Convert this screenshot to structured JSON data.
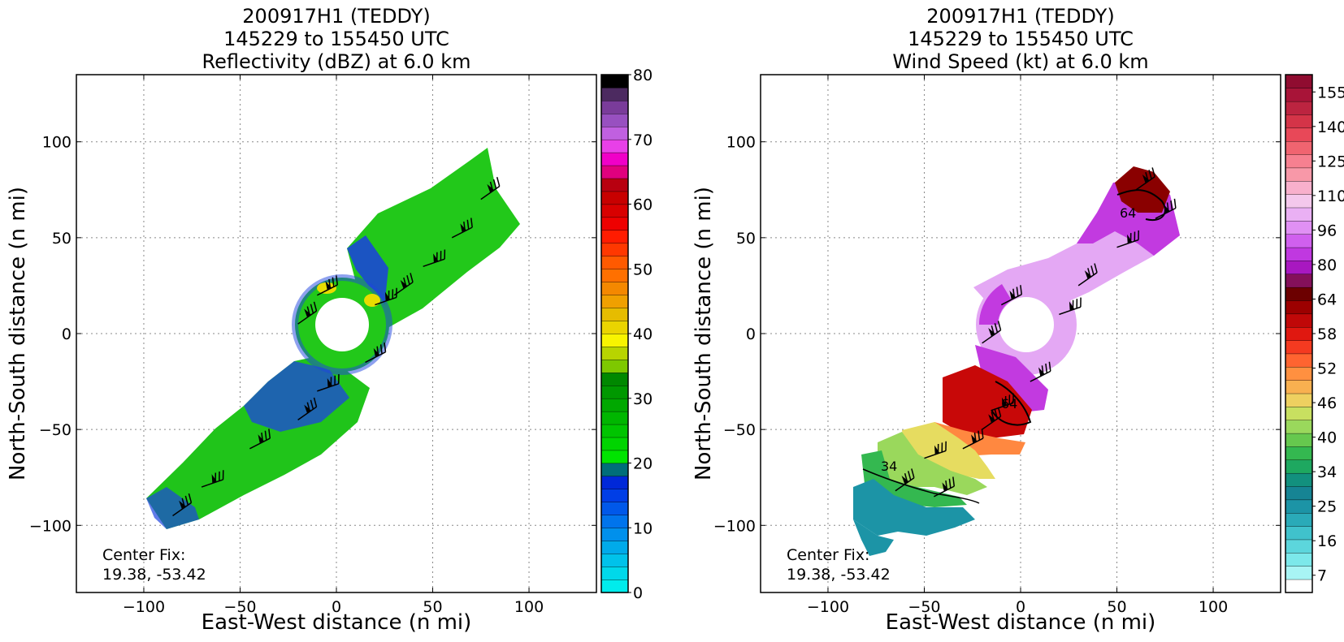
{
  "chart_data": [
    {
      "type": "heatmap",
      "title": [
        "200917H1 (TEDDY)",
        "145229 to 155450 UTC",
        "Reflectivity (dBZ) at 6.0 km"
      ],
      "xlabel": "East-West distance (n mi)",
      "ylabel": "North-South distance (n mi)",
      "xlim": [
        -135,
        135
      ],
      "ylim": [
        -135,
        135
      ],
      "xticks": [
        -100,
        -50,
        0,
        50,
        100
      ],
      "yticks": [
        -100,
        -50,
        0,
        50,
        100
      ],
      "grid": true,
      "annotation": [
        "Center Fix:",
        "19.38, -53.42"
      ],
      "colorbar": {
        "min": 0,
        "max": 80,
        "ticks": [
          0,
          10,
          20,
          30,
          40,
          50,
          60,
          70,
          80
        ],
        "colors": [
          "#00ecec",
          "#00d8ea",
          "#00c2ea",
          "#00aaea",
          "#0090ec",
          "#0074ec",
          "#0058ea",
          "#003ee6",
          "#0028d8",
          "#006e7a",
          "#00e400",
          "#00d400",
          "#00c400",
          "#00b600",
          "#00a800",
          "#009800",
          "#008800",
          "#7ec800",
          "#b8d400",
          "#f8f400",
          "#ead400",
          "#e6bc00",
          "#f0a000",
          "#f48800",
          "#ff7000",
          "#ff5a00",
          "#ff3800",
          "#ff1c00",
          "#ee0000",
          "#d80000",
          "#c80000",
          "#b80010",
          "#e0007e",
          "#f000c8",
          "#e840e8",
          "#c060e0",
          "#9850c0",
          "#7a3c9a",
          "#4c2a60",
          "#000000"
        ]
      },
      "field_series": [
        {
          "x": 75,
          "y": 70,
          "value": 22
        },
        {
          "x": 60,
          "y": 50,
          "value": 24
        },
        {
          "x": 45,
          "y": 35,
          "value": 22
        },
        {
          "x": 30,
          "y": 20,
          "value": 24
        },
        {
          "x": -10,
          "y": 20,
          "value": 34
        },
        {
          "x": 20,
          "y": 15,
          "value": 36
        },
        {
          "x": -20,
          "y": 5,
          "value": 28
        },
        {
          "x": 15,
          "y": -15,
          "value": 14
        },
        {
          "x": -10,
          "y": -30,
          "value": 20
        },
        {
          "x": -20,
          "y": -45,
          "value": 12
        },
        {
          "x": -45,
          "y": -60,
          "value": 22
        },
        {
          "x": -70,
          "y": -80,
          "value": 20
        },
        {
          "x": -85,
          "y": -95,
          "value": 12
        }
      ]
    },
    {
      "type": "heatmap",
      "title": [
        "200917H1 (TEDDY)",
        "145229 to 155450 UTC",
        "Wind Speed (kt) at 6.0 km"
      ],
      "xlabel": "East-West distance (n mi)",
      "ylabel": "North-South distance (n mi)",
      "xlim": [
        -135,
        135
      ],
      "ylim": [
        -135,
        135
      ],
      "xticks": [
        -100,
        -50,
        0,
        50,
        100
      ],
      "yticks": [
        -100,
        -50,
        0,
        50,
        100
      ],
      "grid": true,
      "annotation": [
        "Center Fix:",
        "19.38, -53.42"
      ],
      "contour_labels": [
        "64",
        "64",
        "34"
      ],
      "colorbar": {
        "ticks": [
          7,
          16,
          25,
          34,
          40,
          46,
          52,
          58,
          64,
          80,
          96,
          110,
          125,
          140,
          155
        ],
        "colors": [
          "#ffffff",
          "#a8f4f4",
          "#7ce8ea",
          "#5cd6dc",
          "#40c2cc",
          "#2aaab8",
          "#1c94a6",
          "#168494",
          "#12907e",
          "#1ea860",
          "#34b850",
          "#66c84e",
          "#9ad85c",
          "#c8e060",
          "#eed060",
          "#f8b050",
          "#ff9040",
          "#ff6430",
          "#f43a20",
          "#e01810",
          "#c00808",
          "#9c0000",
          "#6c0000",
          "#84105a",
          "#a818c0",
          "#c038e0",
          "#d060ee",
          "#e090f4",
          "#eab0f4",
          "#f4c8ec",
          "#f8b0cc",
          "#f898a8",
          "#f68090",
          "#f06470",
          "#e84858",
          "#d43448",
          "#bc2440",
          "#a81438",
          "#900c30"
        ]
      },
      "field_series": [
        {
          "x": 60,
          "y": 75,
          "value": 58
        },
        {
          "x": 70,
          "y": 60,
          "value": 70
        },
        {
          "x": 50,
          "y": 45,
          "value": 86
        },
        {
          "x": 30,
          "y": 25,
          "value": 92
        },
        {
          "x": -10,
          "y": 15,
          "value": 76
        },
        {
          "x": 20,
          "y": 10,
          "value": 84
        },
        {
          "x": -20,
          "y": -5,
          "value": 72
        },
        {
          "x": 5,
          "y": -25,
          "value": 70
        },
        {
          "x": -15,
          "y": -40,
          "value": 58
        },
        {
          "x": -20,
          "y": -50,
          "value": 50
        },
        {
          "x": -30,
          "y": -60,
          "value": 42
        },
        {
          "x": -50,
          "y": -65,
          "value": 36
        },
        {
          "x": -65,
          "y": -82,
          "value": 26
        },
        {
          "x": -45,
          "y": -85,
          "value": 28
        }
      ]
    }
  ]
}
